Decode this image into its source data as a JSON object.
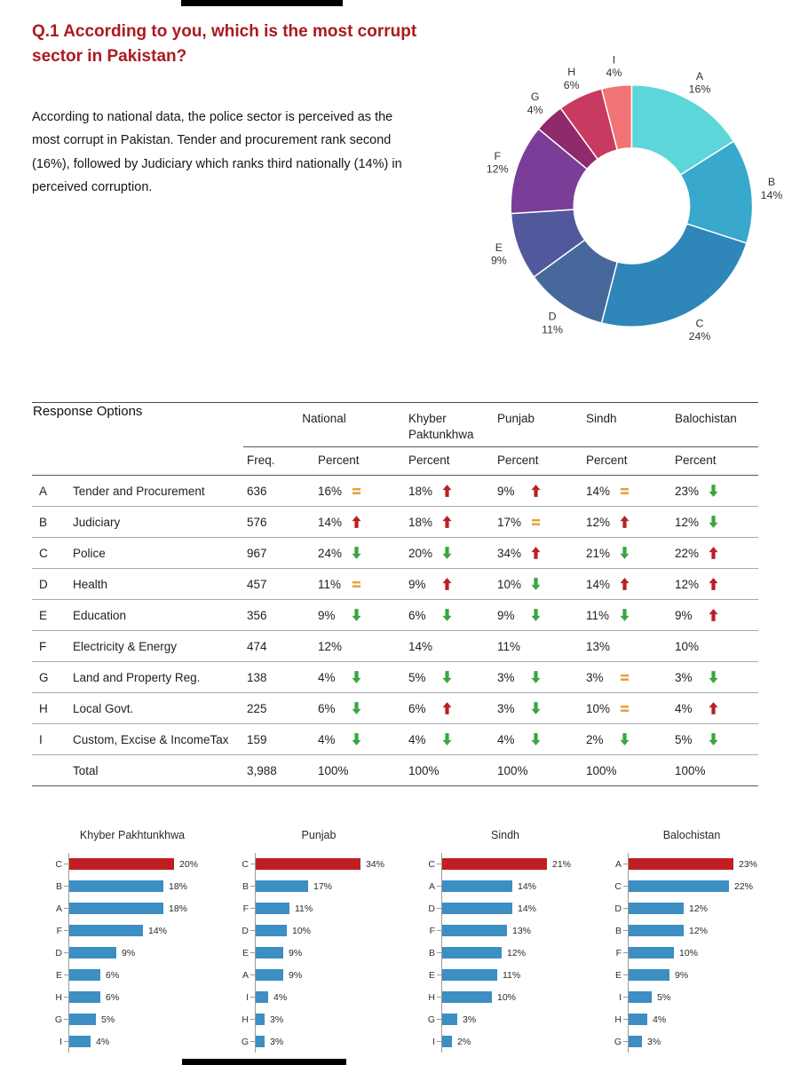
{
  "header": {
    "title": "Q.1 According to you, which is the most corrupt sector in Pakistan?",
    "summary": "According to national data, the police sector is perceived as the most corrupt in Pakistan. Tender and procurement rank second (16%), followed by Judiciary which ranks third nationally (14%) in perceived corruption."
  },
  "colors": {
    "title_red": "#ab1a1f",
    "trend_up": "#b92025",
    "trend_down": "#39a63f",
    "trend_equal": "#e8a33c",
    "bar_blue": "#3d8ec2",
    "bar_red": "#c01e22"
  },
  "table": {
    "response_options_label": "Response Options",
    "groups": [
      "National",
      "Khyber Paktunkhwa",
      "Punjab",
      "Sindh",
      "Balochistan"
    ],
    "sub_headers": [
      "Freq.",
      "Percent",
      "Percent",
      "Percent",
      "Percent",
      "Percent"
    ],
    "rows": [
      {
        "key": "A",
        "label": "Tender and Procurement",
        "freq": "636",
        "cells": [
          {
            "v": "16%",
            "t": "same"
          },
          {
            "v": "18%",
            "t": "up"
          },
          {
            "v": "9%",
            "t": "up"
          },
          {
            "v": "14%",
            "t": "same"
          },
          {
            "v": "23%",
            "t": "down"
          }
        ]
      },
      {
        "key": "B",
        "label": "Judiciary",
        "freq": "576",
        "cells": [
          {
            "v": "14%",
            "t": "up"
          },
          {
            "v": "18%",
            "t": "up"
          },
          {
            "v": "17%",
            "t": "same"
          },
          {
            "v": "12%",
            "t": "up"
          },
          {
            "v": "12%",
            "t": "down"
          }
        ]
      },
      {
        "key": "C",
        "label": "Police",
        "freq": "967",
        "cells": [
          {
            "v": "24%",
            "t": "down"
          },
          {
            "v": "20%",
            "t": "down"
          },
          {
            "v": "34%",
            "t": "up"
          },
          {
            "v": "21%",
            "t": "down"
          },
          {
            "v": "22%",
            "t": "up"
          }
        ]
      },
      {
        "key": "D",
        "label": "Health",
        "freq": "457",
        "cells": [
          {
            "v": "11%",
            "t": "same"
          },
          {
            "v": "9%",
            "t": "up"
          },
          {
            "v": "10%",
            "t": "down"
          },
          {
            "v": "14%",
            "t": "up"
          },
          {
            "v": "12%",
            "t": "up"
          }
        ]
      },
      {
        "key": "E",
        "label": "Education",
        "freq": "356",
        "cells": [
          {
            "v": "9%",
            "t": "down"
          },
          {
            "v": "6%",
            "t": "down"
          },
          {
            "v": "9%",
            "t": "down"
          },
          {
            "v": "11%",
            "t": "down"
          },
          {
            "v": "9%",
            "t": "up"
          }
        ]
      },
      {
        "key": "F",
        "label": "Electricity & Energy",
        "freq": "474",
        "cells": [
          {
            "v": "12%",
            "t": null
          },
          {
            "v": "14%",
            "t": null
          },
          {
            "v": "11%",
            "t": null
          },
          {
            "v": "13%",
            "t": null
          },
          {
            "v": "10%",
            "t": null
          }
        ]
      },
      {
        "key": "G",
        "label": "Land and Property Reg.",
        "freq": "138",
        "cells": [
          {
            "v": "4%",
            "t": "down"
          },
          {
            "v": "5%",
            "t": "down"
          },
          {
            "v": "3%",
            "t": "down"
          },
          {
            "v": "3%",
            "t": "same"
          },
          {
            "v": "3%",
            "t": "down"
          }
        ]
      },
      {
        "key": "H",
        "label": "Local Govt.",
        "freq": "225",
        "cells": [
          {
            "v": "6%",
            "t": "down"
          },
          {
            "v": "6%",
            "t": "up"
          },
          {
            "v": "3%",
            "t": "down"
          },
          {
            "v": "10%",
            "t": "same"
          },
          {
            "v": "4%",
            "t": "up"
          }
        ]
      },
      {
        "key": "I",
        "label": "Custom, Excise & IncomeTax",
        "freq": "159",
        "cells": [
          {
            "v": "4%",
            "t": "down"
          },
          {
            "v": "4%",
            "t": "down"
          },
          {
            "v": "4%",
            "t": "down"
          },
          {
            "v": "2%",
            "t": "down"
          },
          {
            "v": "5%",
            "t": "down"
          }
        ]
      },
      {
        "key": "",
        "label": "Total",
        "freq": "3,988",
        "total": true,
        "cells": [
          {
            "v": "100%",
            "t": null
          },
          {
            "v": "100%",
            "t": null
          },
          {
            "v": "100%",
            "t": null
          },
          {
            "v": "100%",
            "t": null
          },
          {
            "v": "100%",
            "t": null
          }
        ]
      }
    ]
  },
  "chart_data": [
    {
      "type": "pie",
      "style": "donut",
      "title": "",
      "labels": [
        "A",
        "B",
        "C",
        "D",
        "E",
        "F",
        "G",
        "H",
        "I"
      ],
      "values": [
        16,
        14,
        24,
        11,
        9,
        12,
        4,
        6,
        4
      ],
      "unit": "%",
      "colors": [
        "#5cd6d8",
        "#38a8cd",
        "#2e86b9",
        "#47689b",
        "#52589c",
        "#7a3d98",
        "#8f2a6b",
        "#c93a60",
        "#f17375"
      ],
      "legend_position": "around-slices"
    },
    {
      "type": "bar",
      "orientation": "horizontal",
      "title": "Khyber Pakhtunkhwa",
      "categories": [
        "C",
        "B",
        "A",
        "F",
        "D",
        "E",
        "H",
        "G",
        "I"
      ],
      "values": [
        20,
        18,
        18,
        14,
        9,
        6,
        6,
        5,
        4
      ],
      "unit": "%",
      "bar_color": "#3d8ec2",
      "highlight_color": "#c01e22",
      "highlight_index": 0
    },
    {
      "type": "bar",
      "orientation": "horizontal",
      "title": "Punjab",
      "categories": [
        "C",
        "B",
        "F",
        "D",
        "E",
        "A",
        "I",
        "H",
        "G"
      ],
      "values": [
        34,
        17,
        11,
        10,
        9,
        9,
        4,
        3,
        3
      ],
      "unit": "%",
      "bar_color": "#3d8ec2",
      "highlight_color": "#c01e22",
      "highlight_index": 0
    },
    {
      "type": "bar",
      "orientation": "horizontal",
      "title": "Sindh",
      "categories": [
        "C",
        "A",
        "D",
        "F",
        "B",
        "E",
        "H",
        "G",
        "I"
      ],
      "values": [
        21,
        14,
        14,
        13,
        12,
        11,
        10,
        3,
        2
      ],
      "unit": "%",
      "bar_color": "#3d8ec2",
      "highlight_color": "#c01e22",
      "highlight_index": 0
    },
    {
      "type": "bar",
      "orientation": "horizontal",
      "title": "Balochistan",
      "categories": [
        "A",
        "C",
        "D",
        "B",
        "F",
        "E",
        "I",
        "H",
        "G"
      ],
      "values": [
        23,
        22,
        12,
        12,
        10,
        9,
        5,
        4,
        3
      ],
      "unit": "%",
      "bar_color": "#3d8ec2",
      "highlight_color": "#c01e22",
      "highlight_index": 0
    }
  ]
}
